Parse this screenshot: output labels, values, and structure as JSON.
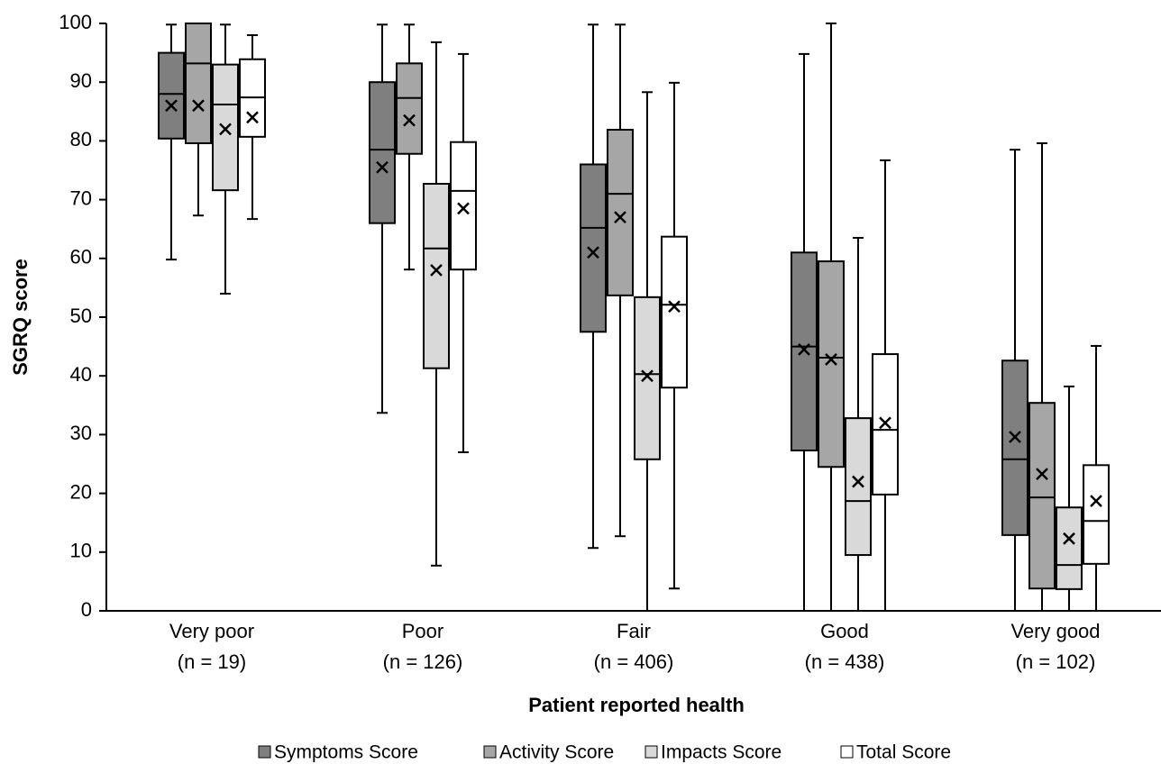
{
  "chart_data": {
    "type": "box",
    "x_label": "Patient reported health",
    "y_label": "SGRQ score",
    "categories": [
      [
        "Very poor",
        "(n = 19)"
      ],
      [
        "Poor",
        "(n = 126)"
      ],
      [
        "Fair",
        "(n = 406)"
      ],
      [
        "Good",
        "(n = 438)"
      ],
      [
        "Very good",
        "(n = 102)"
      ]
    ],
    "ylim": [
      0,
      100
    ],
    "yticks": [
      0,
      10,
      20,
      30,
      40,
      50,
      60,
      70,
      80,
      90,
      100
    ],
    "grid": false,
    "legend": "bottom",
    "series": [
      {
        "name": "Symptoms Score",
        "color": "#7f7f7f",
        "min": [
          59.8,
          33.7,
          10.7,
          0,
          0
        ],
        "q1": [
          80.4,
          66,
          47.5,
          27.3,
          12.9
        ],
        "median": [
          88,
          78.5,
          65.2,
          45,
          25.8
        ],
        "q3": [
          95,
          90,
          76,
          61,
          42.6
        ],
        "max": [
          99.8,
          99.8,
          99.8,
          94.8,
          78.5
        ],
        "mean": [
          86,
          75.5,
          61,
          44.5,
          29.6
        ]
      },
      {
        "name": "Activity Score",
        "color": "#a6a6a6",
        "min": [
          67.3,
          58.1,
          12.7,
          0,
          0
        ],
        "q1": [
          79.6,
          77.8,
          53.7,
          24.5,
          3.8
        ],
        "median": [
          93.2,
          87.3,
          71,
          43.1,
          19.3
        ],
        "q3": [
          100,
          93.2,
          81.9,
          59.5,
          35.4
        ],
        "max": [
          100,
          99.8,
          99.8,
          100,
          79.6
        ],
        "mean": [
          86,
          83.5,
          67,
          42.8,
          23.3
        ]
      },
      {
        "name": "Impacts Score",
        "color": "#d9d9d9",
        "min": [
          54,
          7.7,
          0,
          0,
          0
        ],
        "q1": [
          71.6,
          41.3,
          25.8,
          9.5,
          3.7
        ],
        "median": [
          86.2,
          61.7,
          40.3,
          18.7,
          7.8
        ],
        "q3": [
          93,
          72.7,
          53.4,
          32.8,
          17.6
        ],
        "max": [
          99.8,
          96.8,
          88.3,
          63.5,
          38.2
        ],
        "mean": [
          82,
          58,
          40,
          22,
          12.3
        ]
      },
      {
        "name": "Total Score",
        "color": "#ffffff",
        "min": [
          66.7,
          27,
          3.8,
          0,
          0
        ],
        "q1": [
          80.7,
          58.1,
          38,
          19.8,
          8
        ],
        "median": [
          87.4,
          71.5,
          52.1,
          30.8,
          15.3
        ],
        "q3": [
          93.9,
          79.8,
          63.7,
          43.7,
          24.8
        ],
        "max": [
          98,
          94.8,
          89.9,
          76.7,
          45.1
        ],
        "mean": [
          84,
          68.5,
          51.8,
          32,
          18.7
        ]
      }
    ]
  }
}
